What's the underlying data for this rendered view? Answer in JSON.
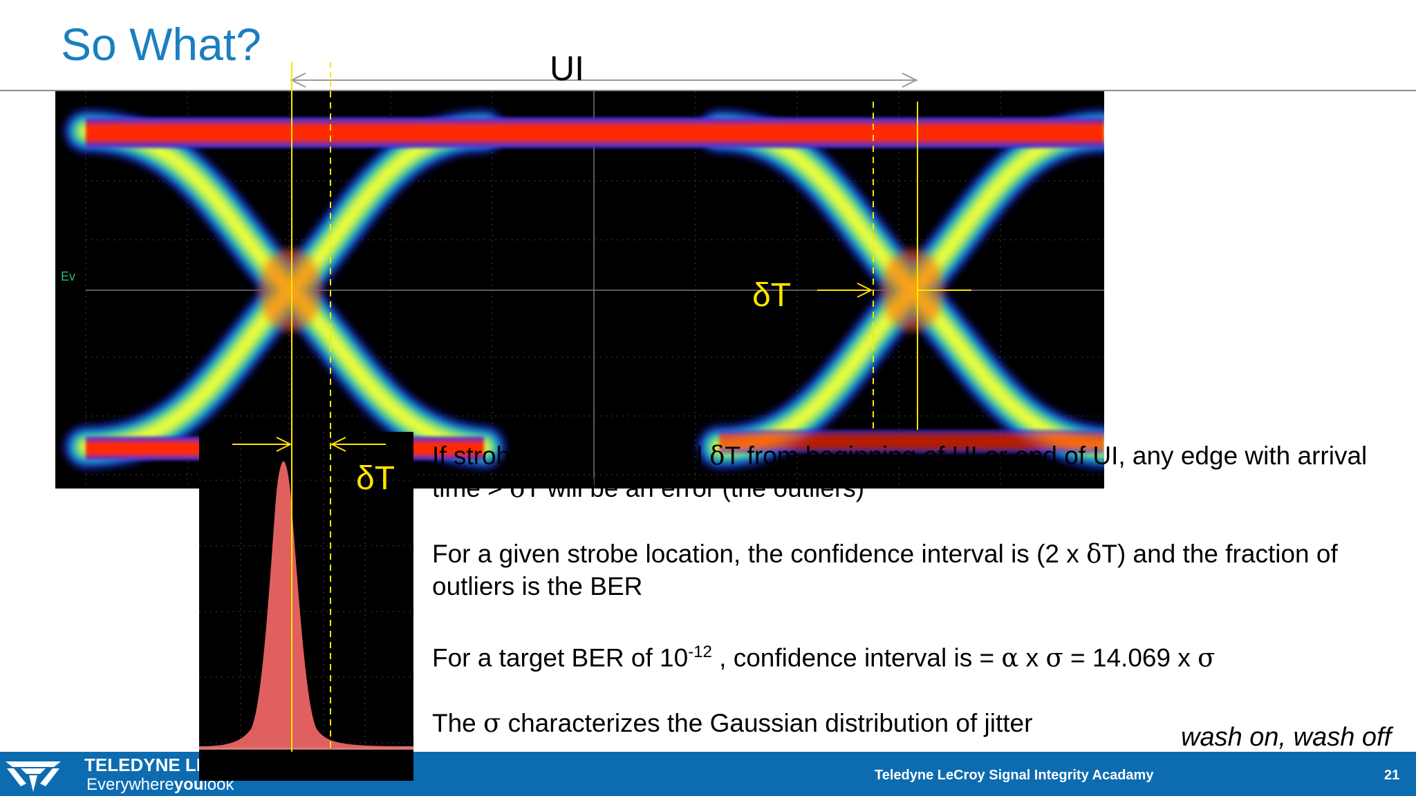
{
  "slide": {
    "title": "So What?",
    "ui_label": "UI",
    "delta_t_eye": "δT",
    "delta_t_histo": "δT",
    "scope_marker": "Ev",
    "tagline": "wash on, wash off"
  },
  "bullets": [
    {
      "pre": "If strobe point is located ",
      "sym1": "δ",
      "mid1": "T from beginning of UI or end of UI, any edge with arrival time > ",
      "sym2": "δ",
      "post": "T will be an error (the outliers)"
    },
    {
      "pre": "For a given strobe location, the confidence interval is (2 x ",
      "sym1": "δ",
      "post": "T) and the fraction of outliers is the BER"
    },
    {
      "pre": "For a target BER of 10",
      "sup": "-12",
      "mid": " , confidence interval is = ",
      "alpha": "α",
      "x1": " x ",
      "sigma1": "σ",
      "eq": " = 14.069 x ",
      "sigma2": "σ"
    },
    {
      "pre": "The ",
      "sigma": "σ",
      "post": " characterizes the Gaussian distribution of jitter"
    }
  ],
  "footer": {
    "brand": "TELEDYNE LECROY",
    "brand_tagline_a": "Everywhere",
    "brand_tagline_b": "you",
    "brand_tagline_c": "look",
    "center": "Teledyne LeCroy Signal Integrity Acadamy",
    "page": "21"
  },
  "colors": {
    "title": "#1a7fc1",
    "footer": "#0d6cb0",
    "marker": "#ffe500",
    "histogram": "#e06060"
  }
}
